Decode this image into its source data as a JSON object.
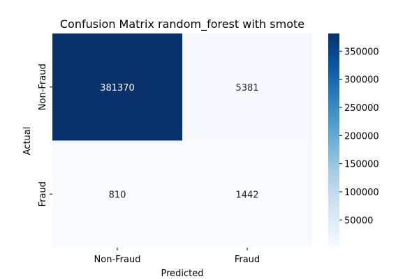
{
  "chart_data": {
    "type": "heatmap",
    "title": "Confusion Matrix random_forest with smote",
    "xlabel": "Predicted",
    "ylabel": "Actual",
    "x_categories": [
      "Non-Fraud",
      "Fraud"
    ],
    "y_categories": [
      "Non-Fraud",
      "Fraud"
    ],
    "values": [
      [
        381370,
        5381
      ],
      [
        810,
        1442
      ]
    ],
    "colormap": "Blues",
    "colorbar": {
      "min": 810,
      "max": 381370,
      "ticks": [
        50000,
        100000,
        150000,
        200000,
        250000,
        300000,
        350000
      ]
    },
    "grid": false
  }
}
